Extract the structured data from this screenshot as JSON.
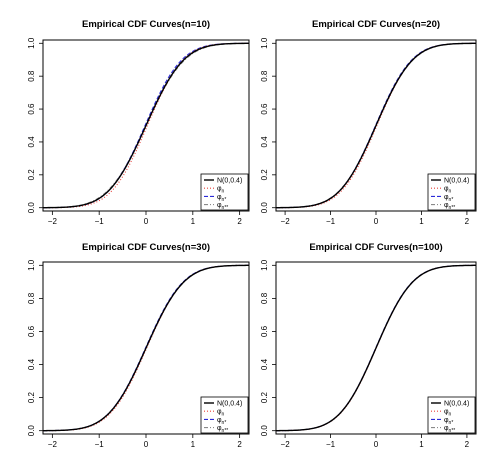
{
  "chart_data": [
    {
      "type": "line",
      "title": "Empirical CDF Curves(n=10)",
      "xlabel": "",
      "ylabel": "",
      "xlim": [
        -2.2,
        2.2
      ],
      "ylim": [
        -0.02,
        1.02
      ],
      "xticks": [
        "-2",
        "-1",
        "0",
        "1",
        "2"
      ],
      "yticks": [
        "0.0",
        "0.2",
        "0.4",
        "0.6",
        "0.8",
        "1.0"
      ],
      "grid": false,
      "legend_position": "bottom-right",
      "series": [
        {
          "name": "N(0,0.4)",
          "style": "solid",
          "color": "#000000",
          "sigma": 0.632
        },
        {
          "name": "φn",
          "sub": "n",
          "style": "dotted",
          "color": "#e8403a",
          "sigma": 0.6,
          "shift": 0.03
        },
        {
          "name": "φn*",
          "sub": "n*",
          "style": "dashed",
          "color": "#2b2bd8",
          "sigma": 0.615,
          "shift": -0.02
        },
        {
          "name": "φn**",
          "sub": "n**",
          "style": "dashdot",
          "color": "#8a8a8a",
          "sigma": 0.65,
          "shift": 0.0
        }
      ]
    },
    {
      "type": "line",
      "title": "Empirical CDF Curves(n=20)",
      "xlabel": "",
      "ylabel": "",
      "xlim": [
        -2.2,
        2.2
      ],
      "ylim": [
        -0.02,
        1.02
      ],
      "xticks": [
        "-2",
        "-1",
        "0",
        "1",
        "2"
      ],
      "yticks": [
        "0.0",
        "0.2",
        "0.4",
        "0.6",
        "0.8",
        "1.0"
      ],
      "grid": false,
      "legend_position": "bottom-right",
      "series": [
        {
          "name": "N(0,0.4)",
          "style": "solid",
          "color": "#000000",
          "sigma": 0.632
        },
        {
          "name": "φn",
          "sub": "n",
          "style": "dotted",
          "color": "#e8403a",
          "sigma": 0.615,
          "shift": 0.02
        },
        {
          "name": "φn*",
          "sub": "n*",
          "style": "dashed",
          "color": "#2b2bd8",
          "sigma": 0.625,
          "shift": -0.01
        },
        {
          "name": "φn**",
          "sub": "n**",
          "style": "dashdot",
          "color": "#8a8a8a",
          "sigma": 0.64,
          "shift": 0.0
        }
      ]
    },
    {
      "type": "line",
      "title": "Empirical CDF Curves(n=30)",
      "xlabel": "",
      "ylabel": "",
      "xlim": [
        -2.2,
        2.2
      ],
      "ylim": [
        -0.02,
        1.02
      ],
      "xticks": [
        "-2",
        "-1",
        "0",
        "1",
        "2"
      ],
      "yticks": [
        "0.0",
        "0.2",
        "0.4",
        "0.6",
        "0.8",
        "1.0"
      ],
      "grid": false,
      "legend_position": "bottom-right",
      "series": [
        {
          "name": "N(0,0.4)",
          "style": "solid",
          "color": "#000000",
          "sigma": 0.632
        },
        {
          "name": "φn",
          "sub": "n",
          "style": "dotted",
          "color": "#e8403a",
          "sigma": 0.62,
          "shift": 0.015
        },
        {
          "name": "φn*",
          "sub": "n*",
          "style": "dashed",
          "color": "#2b2bd8",
          "sigma": 0.628,
          "shift": -0.01
        },
        {
          "name": "φn**",
          "sub": "n**",
          "style": "dashdot",
          "color": "#8a8a8a",
          "sigma": 0.638,
          "shift": 0.0
        }
      ]
    },
    {
      "type": "line",
      "title": "Empirical CDF Curves(n=100)",
      "xlabel": "",
      "ylabel": "",
      "xlim": [
        -2.2,
        2.2
      ],
      "ylim": [
        -0.02,
        1.02
      ],
      "xticks": [
        "-2",
        "-1",
        "0",
        "1",
        "2"
      ],
      "yticks": [
        "0.0",
        "0.2",
        "0.4",
        "0.6",
        "0.8",
        "1.0"
      ],
      "grid": false,
      "legend_position": "bottom-right",
      "series": [
        {
          "name": "N(0,0.4)",
          "style": "solid",
          "color": "#000000",
          "sigma": 0.632
        },
        {
          "name": "φn",
          "sub": "n",
          "style": "dotted",
          "color": "#e8403a",
          "sigma": 0.628,
          "shift": 0.005
        },
        {
          "name": "φn*",
          "sub": "n*",
          "style": "dashed",
          "color": "#2b2bd8",
          "sigma": 0.63,
          "shift": -0.005
        },
        {
          "name": "φn**",
          "sub": "n**",
          "style": "dashdot",
          "color": "#8a8a8a",
          "sigma": 0.634,
          "shift": 0.0
        }
      ]
    }
  ]
}
